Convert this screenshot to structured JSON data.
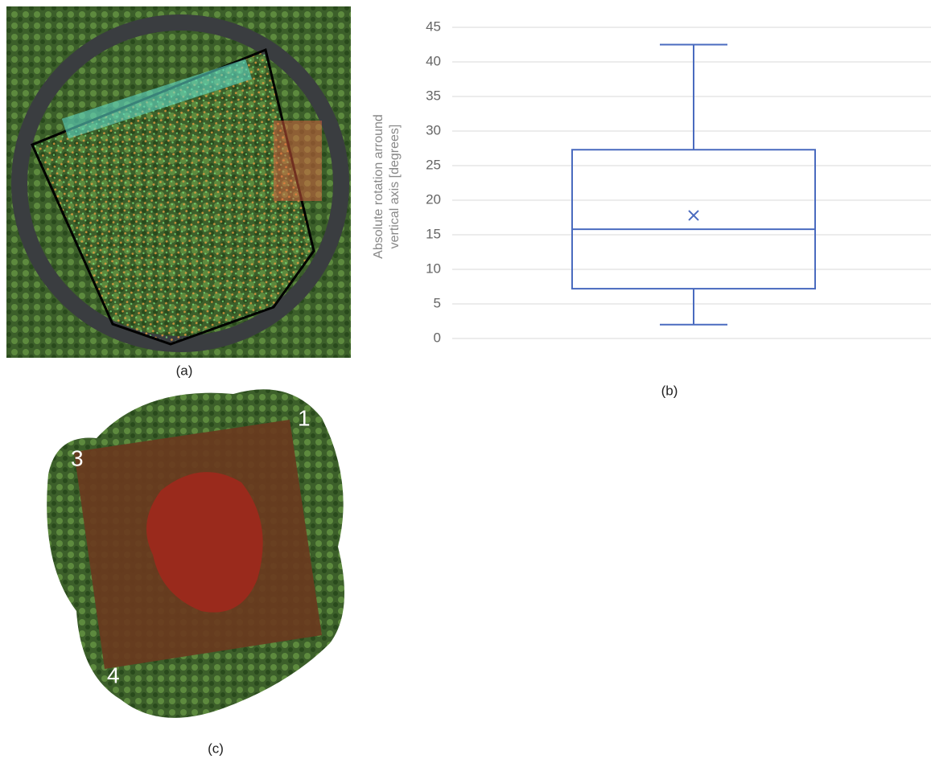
{
  "panel_labels": [
    "(a)",
    "(b)",
    "(c)"
  ],
  "panel_c": {
    "corners": [
      "1",
      "3",
      "4"
    ]
  },
  "chart_data": {
    "type": "box",
    "ylabel": "Absolute rotation arround vertical axis [degrees]",
    "min": 2,
    "q1": 7.2,
    "median": 15.8,
    "q3": 27.3,
    "max": 42.5,
    "mean": 17.8,
    "color": "#4a6bbf",
    "ylim": [
      0,
      45
    ],
    "yticks": [
      0,
      5,
      10,
      15,
      20,
      25,
      30,
      35,
      40,
      45
    ],
    "grid": true
  }
}
